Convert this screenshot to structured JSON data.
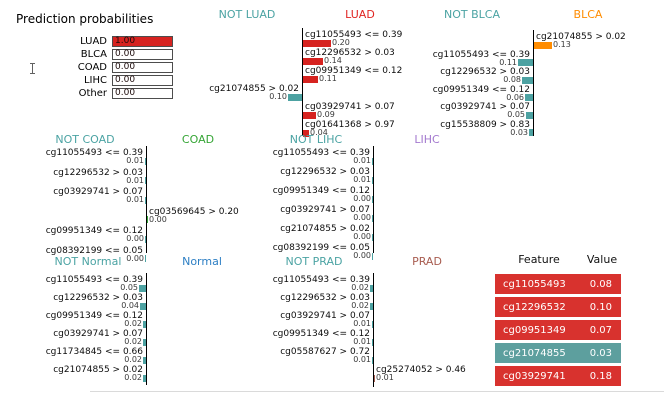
{
  "colors": {
    "not_class_teal": "#4ba3a3",
    "luad_red": "#e02421",
    "blca_orange": "#ff8c00",
    "coad_green": "#35a535",
    "lihc_purple": "#a379cf",
    "normal_blue": "#2d7fc4",
    "prad_brown": "#a85c50",
    "bar_red": "#d62320",
    "bar_teal": "#4da2a2",
    "table_red": "#d8322e",
    "table_teal": "#5d9f9e"
  },
  "chart_data": [
    {
      "id": "prediction_probabilities",
      "type": "bar",
      "orientation": "horizontal",
      "title": "Prediction probabilities",
      "xlim": [
        0,
        1
      ],
      "categories": [
        "LUAD",
        "BLCA",
        "COAD",
        "LIHC",
        "Other"
      ],
      "values": [
        1.0,
        0.0,
        0.0,
        0.0,
        0.0
      ],
      "value_labels": [
        "1.00",
        "0.00",
        "0.00",
        "0.00",
        "0.00"
      ],
      "bar_colors": [
        "#d62320",
        "#ffffff",
        "#ffffff",
        "#ffffff",
        "#ffffff"
      ]
    },
    {
      "id": "luad",
      "type": "bar",
      "orientation": "horizontal",
      "title_neg": "NOT LUAD",
      "title_pos": "LUAD",
      "neg_color": "#4ba3a3",
      "pos_color": "#e02421",
      "bar_neg_color": "#4da2a2",
      "bar_pos_color": "#d62320",
      "features": [
        {
          "label": "cg11055493 <= 0.39",
          "weight": 0.2,
          "weight_label": "0.20",
          "side": "pos"
        },
        {
          "label": "cg12296532 > 0.03",
          "weight": 0.14,
          "weight_label": "0.14",
          "side": "pos"
        },
        {
          "label": "cg09951349 <= 0.12",
          "weight": 0.11,
          "weight_label": "0.11",
          "side": "pos"
        },
        {
          "label": "cg21074855 > 0.02",
          "weight": 0.1,
          "weight_label": "0.10",
          "side": "neg"
        },
        {
          "label": "cg03929741 > 0.07",
          "weight": 0.09,
          "weight_label": "0.09",
          "side": "pos"
        },
        {
          "label": "cg01641368 > 0.97",
          "weight": 0.04,
          "weight_label": "0.04",
          "side": "pos"
        }
      ]
    },
    {
      "id": "blca",
      "type": "bar",
      "orientation": "horizontal",
      "title_neg": "NOT BLCA",
      "title_pos": "BLCA",
      "neg_color": "#4ba3a3",
      "pos_color": "#ff8c00",
      "bar_neg_color": "#4da2a2",
      "bar_pos_color": "#ff8c00",
      "features": [
        {
          "label": "cg21074855 > 0.02",
          "weight": 0.13,
          "weight_label": "0.13",
          "side": "pos"
        },
        {
          "label": "cg11055493 <= 0.39",
          "weight": 0.11,
          "weight_label": "0.11",
          "side": "neg"
        },
        {
          "label": "cg12296532 > 0.03",
          "weight": 0.08,
          "weight_label": "0.08",
          "side": "neg"
        },
        {
          "label": "cg09951349 <= 0.12",
          "weight": 0.06,
          "weight_label": "0.06",
          "side": "neg"
        },
        {
          "label": "cg03929741 > 0.07",
          "weight": 0.05,
          "weight_label": "0.05",
          "side": "neg"
        },
        {
          "label": "cg15538809 > 0.83",
          "weight": 0.03,
          "weight_label": "0.03",
          "side": "neg"
        }
      ]
    },
    {
      "id": "coad",
      "type": "bar",
      "orientation": "horizontal",
      "title_neg": "NOT COAD",
      "title_pos": "COAD",
      "neg_color": "#4ba3a3",
      "pos_color": "#35a535",
      "bar_neg_color": "#4da2a2",
      "bar_pos_color": "#35a535",
      "features": [
        {
          "label": "cg11055493 <= 0.39",
          "weight": 0.01,
          "weight_label": "0.01",
          "side": "neg"
        },
        {
          "label": "cg12296532 > 0.03",
          "weight": 0.01,
          "weight_label": "0.01",
          "side": "neg"
        },
        {
          "label": "cg03929741 > 0.07",
          "weight": 0.01,
          "weight_label": "0.01",
          "side": "neg"
        },
        {
          "label": "cg03569645 > 0.20",
          "weight": 0.0,
          "weight_label": "0.00",
          "side": "pos"
        },
        {
          "label": "cg09951349 <= 0.12",
          "weight": 0.0,
          "weight_label": "0.00",
          "side": "neg"
        },
        {
          "label": "cg08392199 <= 0.05",
          "weight": 0.0,
          "weight_label": "0.00",
          "side": "neg"
        }
      ]
    },
    {
      "id": "lihc",
      "type": "bar",
      "orientation": "horizontal",
      "title_neg": "NOT LIHC",
      "title_pos": "LIHC",
      "neg_color": "#4ba3a3",
      "pos_color": "#a379cf",
      "bar_neg_color": "#4da2a2",
      "bar_pos_color": "#a379cf",
      "features": [
        {
          "label": "cg11055493 <= 0.39",
          "weight": 0.01,
          "weight_label": "0.01",
          "side": "neg"
        },
        {
          "label": "cg12296532 > 0.03",
          "weight": 0.01,
          "weight_label": "0.01",
          "side": "neg"
        },
        {
          "label": "cg09951349 <= 0.12",
          "weight": 0.0,
          "weight_label": "0.00",
          "side": "neg"
        },
        {
          "label": "cg03929741 > 0.07",
          "weight": 0.0,
          "weight_label": "0.00",
          "side": "neg"
        },
        {
          "label": "cg21074855 > 0.02",
          "weight": 0.0,
          "weight_label": "0.00",
          "side": "neg"
        },
        {
          "label": "cg08392199 <= 0.05",
          "weight": 0.0,
          "weight_label": "0.00",
          "side": "neg"
        }
      ]
    },
    {
      "id": "normal",
      "type": "bar",
      "orientation": "horizontal",
      "title_neg": "NOT Normal",
      "title_pos": "Normal",
      "neg_color": "#4ba3a3",
      "pos_color": "#2d7fc4",
      "bar_neg_color": "#4da2a2",
      "bar_pos_color": "#2d7fc4",
      "features": [
        {
          "label": "cg11055493 <= 0.39",
          "weight": 0.05,
          "weight_label": "0.05",
          "side": "neg"
        },
        {
          "label": "cg12296532 > 0.03",
          "weight": 0.04,
          "weight_label": "0.04",
          "side": "neg"
        },
        {
          "label": "cg09951349 <= 0.12",
          "weight": 0.02,
          "weight_label": "0.02",
          "side": "neg"
        },
        {
          "label": "cg03929741 > 0.07",
          "weight": 0.02,
          "weight_label": "0.02",
          "side": "neg"
        },
        {
          "label": "cg11734845 <= 0.66",
          "weight": 0.02,
          "weight_label": "0.02",
          "side": "neg"
        },
        {
          "label": "cg21074855 > 0.02",
          "weight": 0.02,
          "weight_label": "0.02",
          "side": "neg"
        }
      ]
    },
    {
      "id": "prad",
      "type": "bar",
      "orientation": "horizontal",
      "title_neg": "NOT PRAD",
      "title_pos": "PRAD",
      "neg_color": "#4ba3a3",
      "pos_color": "#a85c50",
      "bar_neg_color": "#4da2a2",
      "bar_pos_color": "#a85c50",
      "features": [
        {
          "label": "cg11055493 <= 0.39",
          "weight": 0.02,
          "weight_label": "0.02",
          "side": "neg"
        },
        {
          "label": "cg12296532 > 0.03",
          "weight": 0.02,
          "weight_label": "0.02",
          "side": "neg"
        },
        {
          "label": "cg03929741 > 0.07",
          "weight": 0.01,
          "weight_label": "0.01",
          "side": "neg"
        },
        {
          "label": "cg09951349 <= 0.12",
          "weight": 0.01,
          "weight_label": "0.01",
          "side": "neg"
        },
        {
          "label": "cg05587627 > 0.72",
          "weight": 0.01,
          "weight_label": "0.01",
          "side": "neg"
        },
        {
          "label": "cg25274052 > 0.46",
          "weight": 0.01,
          "weight_label": "0.01",
          "side": "pos"
        }
      ]
    },
    {
      "id": "feature_value_table",
      "type": "table",
      "headers": [
        "Feature",
        "Value"
      ],
      "rows": [
        {
          "feature": "cg11055493",
          "value": "0.08",
          "row_color": "#d8322e"
        },
        {
          "feature": "cg12296532",
          "value": "0.10",
          "row_color": "#d8322e"
        },
        {
          "feature": "cg09951349",
          "value": "0.07",
          "row_color": "#d8322e"
        },
        {
          "feature": "cg21074855",
          "value": "0.03",
          "row_color": "#5d9f9e"
        },
        {
          "feature": "cg03929741",
          "value": "0.18",
          "row_color": "#d8322e"
        }
      ]
    }
  ]
}
